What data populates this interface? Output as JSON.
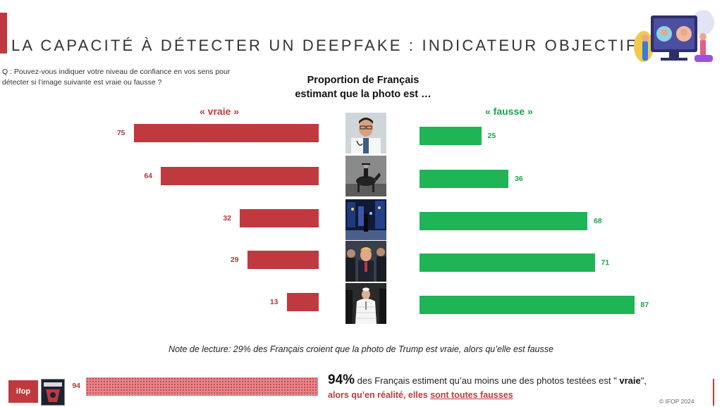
{
  "header": {
    "title": "LA CAPACITÉ À DÉTECTER UN DEEPFAKE : INDICATEUR OBJECTIF",
    "question": "Q : Pouvez-vous indiquer votre niveau de confiance en vos sens pour détecter si l’image suivante est vraie ou fausse ?"
  },
  "chart_data": {
    "type": "bar",
    "subtitle_line1": "Proportion de Français",
    "subtitle_line2": "estimant que la photo est …",
    "series": [
      {
        "name": "« vraie »",
        "values": [
          75,
          64,
          32,
          29,
          13
        ],
        "color": "#c0393e"
      },
      {
        "name": "«  fausse »",
        "values": [
          25,
          36,
          68,
          71,
          87
        ],
        "color": "#1fb455"
      }
    ],
    "xlim": [
      0,
      100
    ],
    "total": {
      "value": 94
    }
  },
  "images": [
    "doctor-photo",
    "horseman-photo",
    "city-night-photo",
    "trump-arrest-photo",
    "pope-puffer-photo"
  ],
  "note": "Note de lecture: 29% des Français croient que la photo de Trump est vraie, alors qu’elle est fausse",
  "conclusion": {
    "pct": "94%",
    "text1": " des Français estiment qu’au moins une des photos testées est \" ",
    "bold": "vraie",
    "text2": "\",",
    "line2_start": "alors qu’en réalité, elles ",
    "line2_underlined": "sont toutes fausses"
  },
  "footer": {
    "logo": "ifop",
    "copyright": "© IFOP 2024"
  },
  "colors": {
    "accent": "#c0393e",
    "green": "#1fb455"
  }
}
